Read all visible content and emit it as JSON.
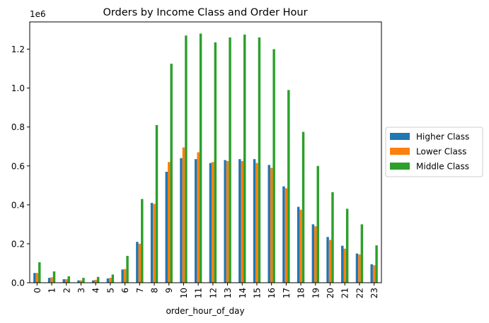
{
  "chart_data": {
    "type": "bar",
    "title": "Orders by Income Class and Order Hour",
    "xlabel": "order_hour_of_day",
    "ylabel": "",
    "y_offset_label": "1e6",
    "ylim": [
      0,
      1.34
    ],
    "yticks": [
      0.0,
      0.2,
      0.4,
      0.6,
      0.8,
      1.0,
      1.2
    ],
    "ytick_labels": [
      "0.0",
      "0.2",
      "0.4",
      "0.6",
      "0.8",
      "1.0",
      "1.2"
    ],
    "grid": false,
    "legend_position": "right",
    "categories": [
      "0",
      "1",
      "2",
      "3",
      "4",
      "5",
      "6",
      "7",
      "8",
      "9",
      "10",
      "11",
      "12",
      "13",
      "14",
      "15",
      "16",
      "17",
      "18",
      "19",
      "20",
      "21",
      "22",
      "23"
    ],
    "series": [
      {
        "name": "Higher Class",
        "color": "#1f77b4",
        "values": [
          0.05,
          0.025,
          0.018,
          0.012,
          0.012,
          0.022,
          0.068,
          0.21,
          0.41,
          0.57,
          0.64,
          0.635,
          0.615,
          0.63,
          0.635,
          0.635,
          0.605,
          0.495,
          0.39,
          0.3,
          0.235,
          0.19,
          0.15,
          0.095
        ]
      },
      {
        "name": "Lower Class",
        "color": "#ff7f0e",
        "values": [
          0.05,
          0.028,
          0.018,
          0.012,
          0.015,
          0.025,
          0.07,
          0.2,
          0.405,
          0.62,
          0.695,
          0.67,
          0.62,
          0.625,
          0.625,
          0.615,
          0.59,
          0.485,
          0.375,
          0.29,
          0.22,
          0.175,
          0.145,
          0.09
        ]
      },
      {
        "name": "Middle Class",
        "color": "#2ca02c",
        "values": [
          0.105,
          0.058,
          0.033,
          0.025,
          0.03,
          0.042,
          0.138,
          0.43,
          0.81,
          1.125,
          1.27,
          1.28,
          1.235,
          1.26,
          1.275,
          1.26,
          1.2,
          0.99,
          0.775,
          0.6,
          0.465,
          0.38,
          0.3,
          0.192
        ]
      }
    ]
  }
}
